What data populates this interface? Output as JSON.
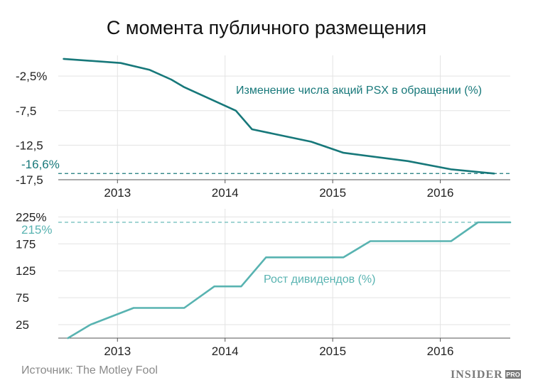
{
  "title": "С момента публичного размещения",
  "source": "Источник: The Motley Fool",
  "logo": {
    "main": "INSIDER",
    "sup": "PRO"
  },
  "colors": {
    "shares": "#17787a",
    "dividends": "#58b3b1",
    "grid": "#e3e3e3",
    "text": "#222222"
  },
  "chart_data": [
    {
      "type": "line",
      "title": "",
      "series": [
        {
          "name": "Изменение числа акций PSX в обращении (%)",
          "color": "#17787a",
          "points": [
            {
              "x": 2012.5,
              "y": 0.0
            },
            {
              "x": 2013.03,
              "y": -0.6
            },
            {
              "x": 2013.3,
              "y": -1.6
            },
            {
              "x": 2013.5,
              "y": -3.0
            },
            {
              "x": 2013.62,
              "y": -4.1
            },
            {
              "x": 2014.1,
              "y": -7.5
            },
            {
              "x": 2014.25,
              "y": -10.2
            },
            {
              "x": 2014.8,
              "y": -12.0
            },
            {
              "x": 2015.1,
              "y": -13.6
            },
            {
              "x": 2015.7,
              "y": -14.8
            },
            {
              "x": 2016.1,
              "y": -16.0
            },
            {
              "x": 2016.5,
              "y": -16.6
            }
          ]
        }
      ],
      "y_ticks": [
        "-2,5%",
        "-7,5",
        "-12,5",
        "-17,5"
      ],
      "y_tick_values": [
        -2.5,
        -7.5,
        -12.5,
        -17.5
      ],
      "ylim": [
        -17.5,
        0.5
      ],
      "x_ticks": [
        "2013",
        "2014",
        "2015",
        "2016"
      ],
      "x_tick_values": [
        2013,
        2014,
        2015,
        2016
      ],
      "xlim": [
        2012.45,
        2016.65
      ],
      "reference_line": {
        "value": -16.6,
        "label": "-16,6%"
      },
      "grid": true
    },
    {
      "type": "line",
      "title": "",
      "series": [
        {
          "name": "Рост дивидендов (%)",
          "color": "#58b3b1",
          "points": [
            {
              "x": 2012.54,
              "y": 0
            },
            {
              "x": 2012.75,
              "y": 25
            },
            {
              "x": 2013.15,
              "y": 56
            },
            {
              "x": 2013.62,
              "y": 56
            },
            {
              "x": 2013.9,
              "y": 96
            },
            {
              "x": 2014.15,
              "y": 96
            },
            {
              "x": 2014.38,
              "y": 150
            },
            {
              "x": 2015.1,
              "y": 150
            },
            {
              "x": 2015.35,
              "y": 180
            },
            {
              "x": 2016.1,
              "y": 180
            },
            {
              "x": 2016.35,
              "y": 215
            },
            {
              "x": 2016.65,
              "y": 215
            }
          ]
        }
      ],
      "y_ticks": [
        "225%",
        "175",
        "125",
        "75",
        "25"
      ],
      "y_tick_values": [
        225,
        175,
        125,
        75,
        25
      ],
      "ylim": [
        0,
        240
      ],
      "x_ticks": [
        "2013",
        "2014",
        "2015",
        "2016"
      ],
      "x_tick_values": [
        2013,
        2014,
        2015,
        2016
      ],
      "xlim": [
        2012.45,
        2016.65
      ],
      "reference_line": {
        "value": 215,
        "label": "215%"
      },
      "grid": true
    }
  ]
}
